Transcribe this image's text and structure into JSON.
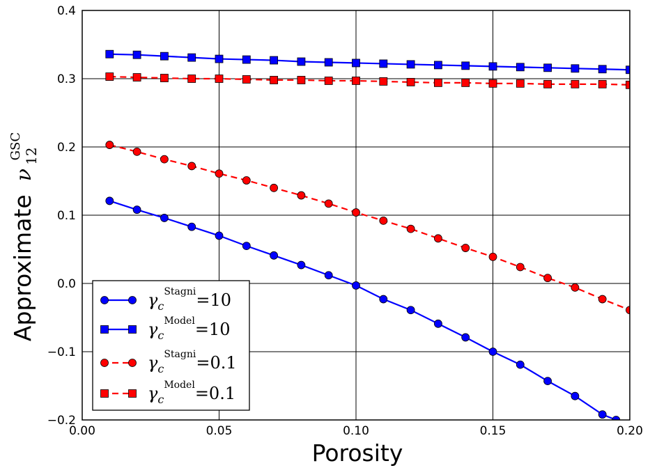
{
  "chart_data": {
    "type": "line",
    "xlabel": "Porosity",
    "ylabel": {
      "prefix": "Approximate",
      "symbol": "ν",
      "subscript": "12",
      "superscript": "GSC"
    },
    "xlim": [
      0.0,
      0.2
    ],
    "ylim": [
      -0.2,
      0.4
    ],
    "x_ticks": [
      "0.00",
      "0.05",
      "0.10",
      "0.15",
      "0.20"
    ],
    "y_ticks": [
      "−0.2",
      "−0.1",
      "0.0",
      "0.1",
      "0.2",
      "0.3",
      "0.4"
    ],
    "grid": true,
    "legend_position": "lower-left",
    "x": [
      0.01,
      0.02,
      0.03,
      0.04,
      0.05,
      0.06,
      0.07,
      0.08,
      0.09,
      0.1,
      0.11,
      0.12,
      0.13,
      0.14,
      0.15,
      0.16,
      0.17,
      0.18,
      0.19,
      0.2
    ],
    "series": [
      {
        "legend": {
          "symbol": "γ",
          "sub": "c",
          "sup": "Stagni",
          "rhs": "=10"
        },
        "color": "#0000ff",
        "marker": "circle",
        "line": "solid",
        "x": [
          0.01,
          0.02,
          0.03,
          0.04,
          0.05,
          0.06,
          0.07,
          0.08,
          0.09,
          0.1,
          0.11,
          0.12,
          0.13,
          0.14,
          0.15,
          0.16,
          0.17,
          0.18,
          0.19,
          0.195
        ],
        "values": [
          0.121,
          0.108,
          0.096,
          0.083,
          0.07,
          0.055,
          0.041,
          0.027,
          0.012,
          -0.003,
          -0.023,
          -0.039,
          -0.059,
          -0.079,
          -0.1,
          -0.119,
          -0.143,
          -0.165,
          -0.192,
          -0.2
        ]
      },
      {
        "legend": {
          "symbol": "γ",
          "sub": "c",
          "sup": "Model",
          "rhs": "=10"
        },
        "color": "#0000ff",
        "marker": "square",
        "line": "solid",
        "values": [
          0.336,
          0.335,
          0.333,
          0.331,
          0.329,
          0.328,
          0.327,
          0.325,
          0.324,
          0.323,
          0.322,
          0.321,
          0.32,
          0.319,
          0.318,
          0.317,
          0.316,
          0.315,
          0.314,
          0.313
        ]
      },
      {
        "legend": {
          "symbol": "γ",
          "sub": "c",
          "sup": "Stagni",
          "rhs": "=0.1"
        },
        "color": "#ff0000",
        "marker": "circle",
        "line": "dashed",
        "values": [
          0.203,
          0.193,
          0.182,
          0.172,
          0.161,
          0.151,
          0.14,
          0.129,
          0.117,
          0.104,
          0.092,
          0.08,
          0.066,
          0.052,
          0.039,
          0.024,
          0.008,
          -0.006,
          -0.023,
          -0.039
        ]
      },
      {
        "legend": {
          "symbol": "γ",
          "sub": "c",
          "sup": "Model",
          "rhs": "=0.1"
        },
        "color": "#ff0000",
        "marker": "square",
        "line": "dashed",
        "values": [
          0.303,
          0.302,
          0.301,
          0.3,
          0.3,
          0.299,
          0.298,
          0.298,
          0.297,
          0.297,
          0.296,
          0.295,
          0.294,
          0.294,
          0.293,
          0.293,
          0.292,
          0.292,
          0.292,
          0.291
        ]
      }
    ]
  }
}
